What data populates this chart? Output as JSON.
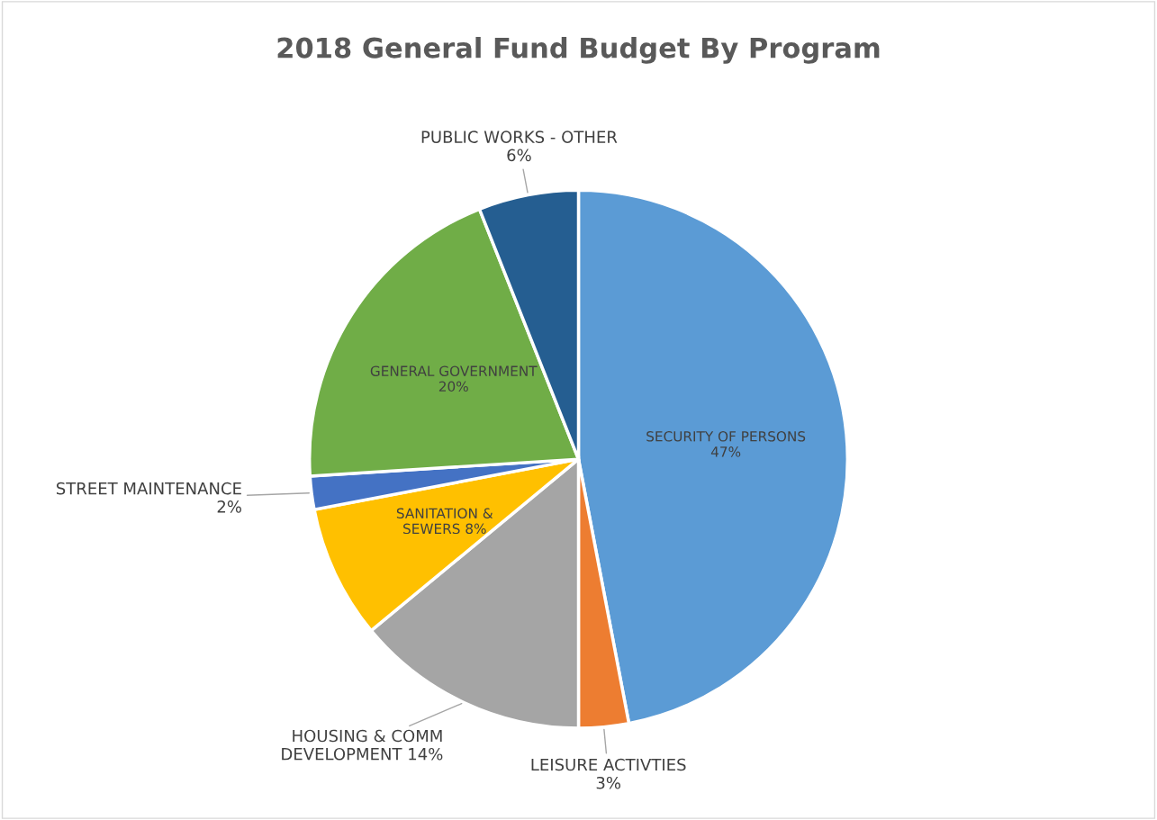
{
  "chart_data": {
    "type": "pie",
    "title": "2018 General Fund Budget By Program",
    "categories": [
      "SECURITY OF PERSONS",
      "LEISURE ACTIVTIES",
      "HOUSING & COMM\nDEVELOPMENT",
      "SANITATION &\nSEWERS",
      "STREET MAINTENANCE",
      "GENERAL GOVERNMENT",
      "PUBLIC WORKS - OTHER"
    ],
    "values": [
      47,
      3,
      14,
      8,
      2,
      20,
      6
    ],
    "value_labels": [
      "47%",
      "3%",
      "14%",
      "8%",
      "2%",
      "20%",
      "6%"
    ],
    "colors": [
      "#5b9bd5",
      "#ed7d31",
      "#a5a5a5",
      "#ffc000",
      "#4472c4",
      "#70ad47",
      "#255e91"
    ],
    "legend": false
  }
}
